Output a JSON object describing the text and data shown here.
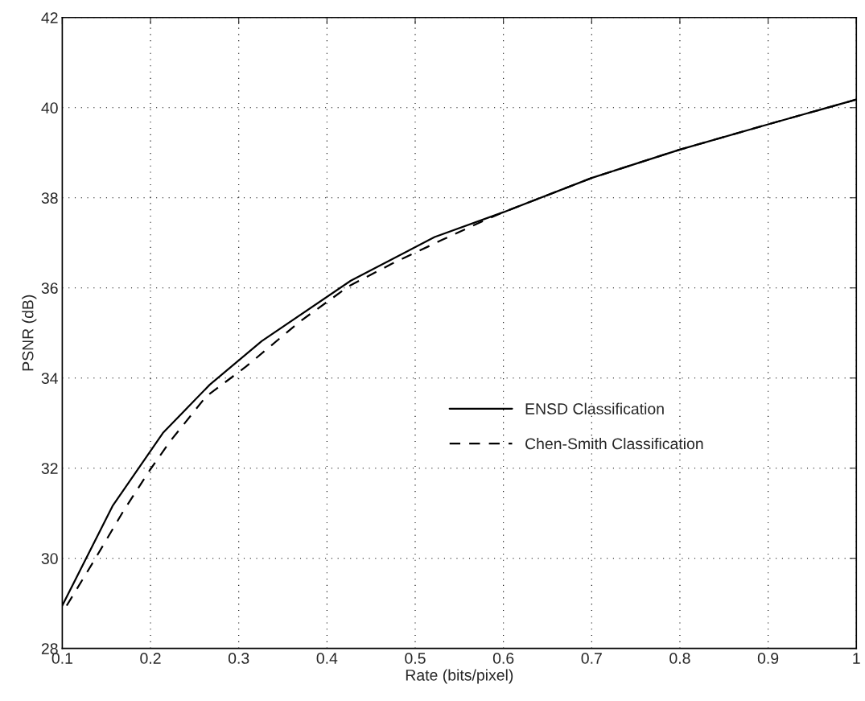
{
  "chart_data": {
    "type": "line",
    "xlabel": "Rate (bits/pixel)",
    "ylabel": "PSNR (dB)",
    "xlim": [
      0.1,
      1
    ],
    "xticks": [
      0.1,
      0.2,
      0.3,
      0.4,
      0.5,
      0.6,
      0.7,
      0.8,
      0.9,
      1
    ],
    "ylim": [
      28,
      42
    ],
    "yticks": [
      28,
      30,
      32,
      34,
      36,
      38,
      40,
      42
    ],
    "grid": true,
    "legend": "right",
    "series": [
      {
        "name": "ENSD Classification",
        "color": "#000000",
        "line_style": "solid",
        "x": [
          0.1,
          0.157,
          0.214,
          0.267,
          0.326,
          0.427,
          0.522,
          0.6,
          0.7,
          0.8,
          0.9,
          1.0
        ],
        "values": [
          28.95,
          31.16,
          32.78,
          33.85,
          34.82,
          36.16,
          37.13,
          37.68,
          38.44,
          39.07,
          39.63,
          40.18
        ]
      },
      {
        "name": "Chen-Smith Classification",
        "color": "#000000",
        "line_style": "dashed",
        "x": [
          0.105,
          0.137,
          0.169,
          0.199,
          0.222,
          0.263,
          0.308,
          0.369,
          0.425,
          0.473,
          0.531,
          0.582,
          0.6,
          0.7,
          0.8,
          0.9,
          1.0
        ],
        "values": [
          28.95,
          29.98,
          31.04,
          31.95,
          32.59,
          33.59,
          34.25,
          35.25,
          36.04,
          36.53,
          37.07,
          37.53,
          37.68,
          38.44,
          39.07,
          39.63,
          40.18
        ]
      }
    ]
  }
}
